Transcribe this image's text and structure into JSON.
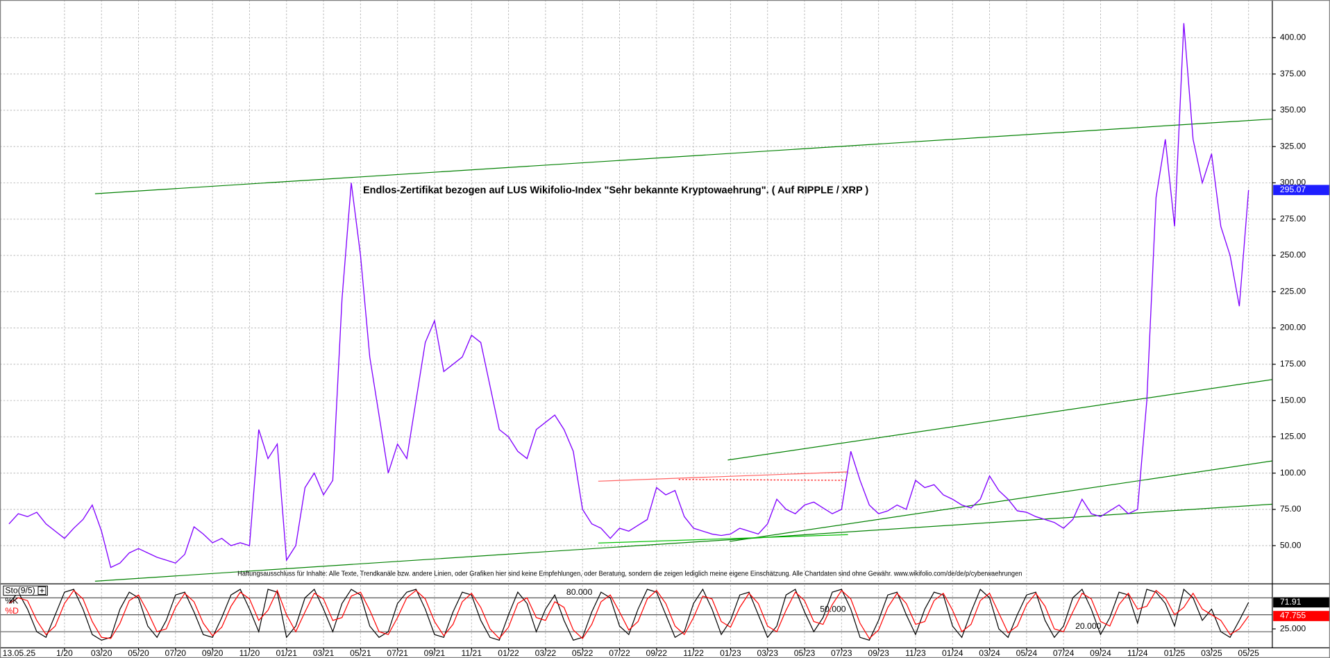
{
  "chart_data": {
    "type": "line",
    "title": "Endlos-Zertifikat bezogen auf LUS Wikifolio-Index \"Sehr bekannte Kryptowaehrung\". ( Auf RIPPLE / XRP )",
    "disclaimer": "Haftungsausschluss für Inhalte: Alle Texte, Trendkanäle bzw. andere Linien, oder Grafiken hier sind keine Empfehlungen, oder Beratung, sondern die zeigen lediglich meine eigene Einschätzung. Alle Chartdaten sind ohne Gewähr. www.wikifolio.com/de/de/p/cyberwaehrungen",
    "date_label": "13.05.25",
    "categories": [
      null,
      null,
      null,
      null,
      null,
      null,
      "1/20",
      null,
      null,
      null,
      "03/20",
      null,
      null,
      null,
      "05/20",
      null,
      null,
      null,
      "07/20",
      null,
      null,
      null,
      "09/20",
      null,
      null,
      null,
      "11/20",
      null,
      null,
      null,
      "01/21",
      null,
      null,
      null,
      "03/21",
      null,
      null,
      null,
      "05/21",
      null,
      null,
      null,
      "07/21",
      null,
      null,
      null,
      "09/21",
      null,
      null,
      null,
      "11/21",
      null,
      null,
      null,
      "01/22",
      null,
      null,
      null,
      "03/22",
      null,
      null,
      null,
      "05/22",
      null,
      null,
      null,
      "07/22",
      null,
      null,
      null,
      "09/22",
      null,
      null,
      null,
      "11/22",
      null,
      null,
      null,
      "01/23",
      null,
      null,
      null,
      "03/23",
      null,
      null,
      null,
      "05/23",
      null,
      null,
      null,
      "07/23",
      null,
      null,
      null,
      "09/23",
      null,
      null,
      null,
      "11/23",
      null,
      null,
      null,
      "01/24",
      null,
      null,
      null,
      "03/24",
      null,
      null,
      null,
      "05/24",
      null,
      null,
      null,
      "07/24",
      null,
      null,
      null,
      "09/24",
      null,
      null,
      null,
      "11/24",
      null,
      null,
      null,
      "01/25",
      null,
      null,
      null,
      "03/25",
      null,
      null,
      null,
      "05/25"
    ],
    "ylim": [
      24,
      426
    ],
    "yticks": [
      {
        "value": 50,
        "label": "50.00"
      },
      {
        "value": 75,
        "label": "75.00"
      },
      {
        "value": 100,
        "label": "100.00"
      },
      {
        "value": 125,
        "label": "125.00"
      },
      {
        "value": 150,
        "label": "150.00"
      },
      {
        "value": 175,
        "label": "175.00"
      },
      {
        "value": 200,
        "label": "200.00"
      },
      {
        "value": 225,
        "label": "225.00"
      },
      {
        "value": 250,
        "label": "250.00"
      },
      {
        "value": 275,
        "label": "275.00"
      },
      {
        "value": 300,
        "label": "300.00"
      },
      {
        "value": 325,
        "label": "325.00"
      },
      {
        "value": 350,
        "label": "350.00"
      },
      {
        "value": 375,
        "label": "375.00"
      },
      {
        "value": 400,
        "label": "400.00"
      }
    ],
    "grid": true,
    "series": [
      {
        "color": "#8000ff",
        "last_label": "295.07",
        "values": [
          65,
          72,
          70,
          73,
          65,
          60,
          55,
          62,
          68,
          78,
          60,
          35,
          38,
          45,
          48,
          45,
          42,
          40,
          38,
          44,
          63,
          58,
          52,
          55,
          50,
          52,
          50,
          130,
          110,
          120,
          40,
          50,
          90,
          100,
          85,
          95,
          220,
          300,
          250,
          180,
          140,
          100,
          120,
          110,
          150,
          190,
          205,
          170,
          175,
          180,
          195,
          190,
          160,
          130,
          125,
          115,
          110,
          130,
          135,
          140,
          130,
          115,
          75,
          65,
          62,
          55,
          62,
          60,
          64,
          68,
          90,
          85,
          88,
          70,
          62,
          60,
          58,
          57,
          58,
          62,
          60,
          58,
          65,
          82,
          75,
          72,
          78,
          80,
          76,
          72,
          75,
          115,
          95,
          78,
          72,
          74,
          78,
          75,
          95,
          90,
          92,
          85,
          82,
          78,
          76,
          82,
          98,
          88,
          82,
          74,
          73,
          70,
          68,
          66,
          62,
          68,
          82,
          72,
          70,
          74,
          78,
          72,
          75,
          150,
          290,
          330,
          270,
          410,
          330,
          300,
          320,
          270,
          250,
          215,
          295.07
        ]
      }
    ],
    "trendlines": [
      {
        "color": "#008000",
        "x": [
          9.3,
          136.6
        ],
        "values": [
          292.5,
          344
        ]
      },
      {
        "color": "#008000",
        "x": [
          9.3,
          136.6
        ],
        "values": [
          25.5,
          78.6
        ]
      },
      {
        "color": "#008000",
        "x": [
          77.9,
          136.6
        ],
        "values": [
          52.9,
          108.4
        ]
      },
      {
        "color": "#008000",
        "x": [
          77.7,
          136.6
        ],
        "values": [
          109,
          164.5
        ]
      },
      {
        "color": "#00c000",
        "x": [
          63.7,
          90.7
        ],
        "values": [
          51.8,
          57.6
        ]
      },
      {
        "color": "#ff6060",
        "x": [
          63.7,
          90.7
        ],
        "values": [
          94.4,
          100.8
        ]
      },
      {
        "color": "#ff0000",
        "dashed": true,
        "x": [
          72.4,
          90.7
        ],
        "values": [
          95.6,
          95.0
        ]
      }
    ],
    "indicator": {
      "title": "Sto(9/5)",
      "ylim": [
        -5.5,
        102.5
      ],
      "levels": [
        {
          "value": 80,
          "label": "80.000"
        },
        {
          "value": 50,
          "label": "50.000"
        },
        {
          "value": 20,
          "label": "20.000"
        }
      ],
      "yticks": [
        {
          "value": 25,
          "label": "25.000"
        }
      ],
      "series": [
        {
          "name": "%K",
          "color": "#000000",
          "last_label": "71.91",
          "values": [
            70,
            90,
            60,
            20,
            10,
            50,
            90,
            95,
            60,
            15,
            5,
            10,
            60,
            90,
            80,
            30,
            10,
            40,
            85,
            90,
            55,
            15,
            10,
            45,
            85,
            95,
            60,
            20,
            95,
            90,
            10,
            30,
            80,
            95,
            60,
            20,
            70,
            95,
            85,
            30,
            10,
            20,
            70,
            90,
            95,
            60,
            15,
            10,
            55,
            90,
            85,
            40,
            10,
            5,
            50,
            90,
            70,
            20,
            60,
            85,
            40,
            5,
            10,
            55,
            90,
            80,
            30,
            15,
            60,
            95,
            90,
            50,
            10,
            20,
            70,
            95,
            60,
            15,
            40,
            85,
            90,
            50,
            10,
            30,
            85,
            95,
            55,
            20,
            45,
            90,
            95,
            60,
            10,
            5,
            40,
            85,
            90,
            50,
            15,
            60,
            90,
            85,
            30,
            10,
            55,
            95,
            80,
            25,
            10,
            50,
            85,
            90,
            40,
            10,
            30,
            80,
            95,
            60,
            15,
            45,
            90,
            85,
            35,
            95,
            90,
            70,
            30,
            95,
            80,
            40,
            60,
            20,
            10,
            40,
            71.91
          ]
        },
        {
          "name": "%D",
          "color": "#ff0000",
          "last_label": "47.755",
          "values": [
            70,
            80,
            75,
            40,
            15,
            30,
            70,
            93,
            78,
            38,
            10,
            8,
            35,
            75,
            85,
            55,
            20,
            25,
            63,
            88,
            73,
            35,
            13,
            28,
            65,
            90,
            78,
            40,
            58,
            93,
            50,
            20,
            55,
            88,
            78,
            40,
            45,
            83,
            90,
            58,
            20,
            15,
            45,
            80,
            93,
            78,
            38,
            13,
            33,
            73,
            88,
            63,
            25,
            8,
            28,
            70,
            80,
            45,
            40,
            73,
            63,
            23,
            8,
            33,
            73,
            85,
            55,
            23,
            38,
            78,
            93,
            70,
            30,
            15,
            45,
            83,
            78,
            38,
            28,
            63,
            88,
            70,
            30,
            20,
            58,
            90,
            75,
            38,
            33,
            68,
            93,
            78,
            35,
            8,
            23,
            63,
            88,
            70,
            33,
            38,
            75,
            88,
            58,
            20,
            33,
            75,
            88,
            53,
            18,
            30,
            68,
            88,
            65,
            25,
            20,
            55,
            88,
            78,
            38,
            30,
            68,
            88,
            60,
            65,
            93,
            80,
            50,
            63,
            88,
            60,
            50,
            40,
            15,
            25,
            47.755
          ]
        }
      ]
    }
  }
}
